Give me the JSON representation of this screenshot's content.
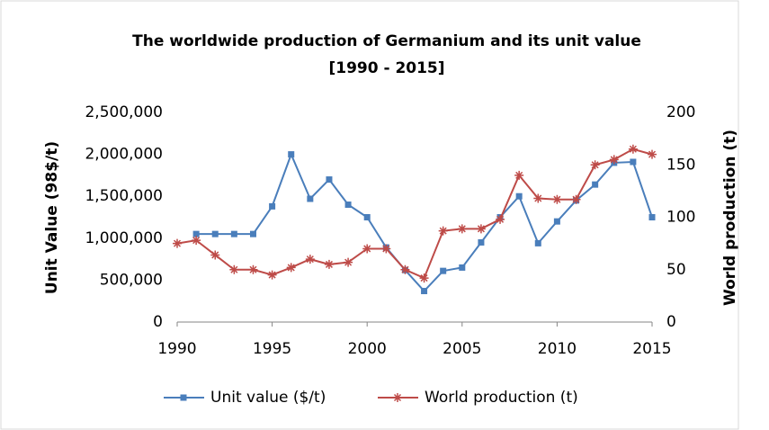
{
  "chart_data": {
    "type": "line",
    "title": [
      "The worldwide production of Germanium and its unit value",
      "[1990 - 2015]"
    ],
    "y_label": "Unit Value (98$/t)",
    "y2_label": "World production (t)",
    "x": [
      1990,
      1991,
      1992,
      1993,
      1994,
      1995,
      1996,
      1997,
      1998,
      1999,
      2000,
      2001,
      2002,
      2003,
      2004,
      2005,
      2006,
      2007,
      2008,
      2009,
      2010,
      2011,
      2012,
      2013,
      2014,
      2015
    ],
    "series": [
      {
        "name": "Unit value ($/t)",
        "color": "#4a7ebb",
        "marker": "square",
        "values": [
          null,
          1050000,
          1050000,
          1050000,
          1050000,
          1380000,
          2000000,
          1470000,
          1700000,
          1400000,
          1250000,
          890000,
          620000,
          370000,
          610000,
          650000,
          950000,
          1250000,
          1500000,
          940000,
          1200000,
          1450000,
          1640000,
          1900000,
          1910000,
          1250000
        ]
      },
      {
        "name": "World production (t)",
        "color": "#be4b48",
        "marker": "star",
        "axis": "y2",
        "values": [
          75,
          78,
          64,
          50,
          50,
          45,
          52,
          60,
          55,
          57,
          70,
          70,
          50,
          42,
          87,
          89,
          89,
          98,
          140,
          118,
          117,
          117,
          150,
          155,
          165,
          160
        ]
      }
    ],
    "xlim": [
      1990,
      2015
    ],
    "xticks": [
      1990,
      1995,
      2000,
      2005,
      2010,
      2015
    ],
    "ylim": [
      0,
      2500000
    ],
    "yticks": [
      0,
      {
        "value": 500000,
        "label": "500,000"
      },
      {
        "value": 1000000,
        "label": "1,000,000"
      },
      {
        "value": 1500000,
        "label": "1,500,000"
      },
      {
        "value": 2000000,
        "label": "2,000,000"
      },
      {
        "value": 2500000,
        "label": "2,500,000"
      }
    ],
    "y2lim": [
      0,
      200
    ],
    "y2ticks": [
      0,
      50,
      100,
      150,
      200
    ],
    "grid": false,
    "legend": "bottom"
  }
}
